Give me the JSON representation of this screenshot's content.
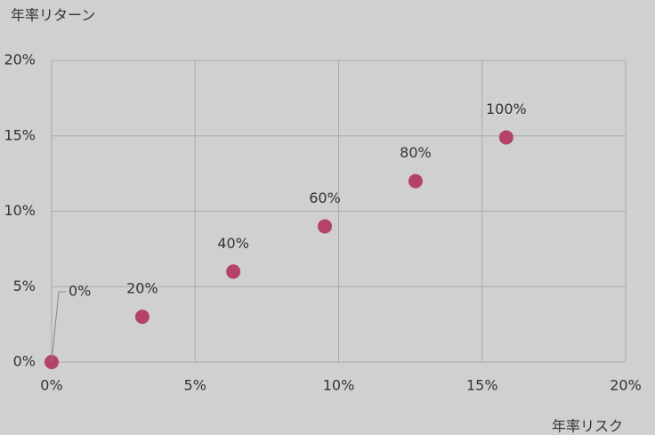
{
  "chart_data": {
    "type": "scatter",
    "x_label": "年率リスク",
    "y_label": "年率リターン",
    "series": [
      {
        "color": "#b4426a",
        "x": [
          0,
          3.16,
          6.33,
          9.52,
          12.68,
          15.84
        ],
        "values": [
          0,
          3.0,
          6.0,
          9.0,
          12.0,
          14.9
        ],
        "labels": [
          "0%",
          "20%",
          "40%",
          "60%",
          "80%",
          "100%"
        ]
      }
    ],
    "xlim": [
      0,
      20
    ],
    "ylim": [
      0,
      20
    ],
    "xticks": [
      {
        "value": 0,
        "label": "0%"
      },
      {
        "value": 5,
        "label": "5%"
      },
      {
        "value": 10,
        "label": "10%"
      },
      {
        "value": 15,
        "label": "15%"
      },
      {
        "value": 20,
        "label": "20%"
      }
    ],
    "yticks": [
      {
        "value": 0,
        "label": "0%"
      },
      {
        "value": 5,
        "label": "5%"
      },
      {
        "value": 10,
        "label": "10%"
      },
      {
        "value": 15,
        "label": "15%"
      },
      {
        "value": 20,
        "label": "20%"
      }
    ],
    "grid": true
  }
}
